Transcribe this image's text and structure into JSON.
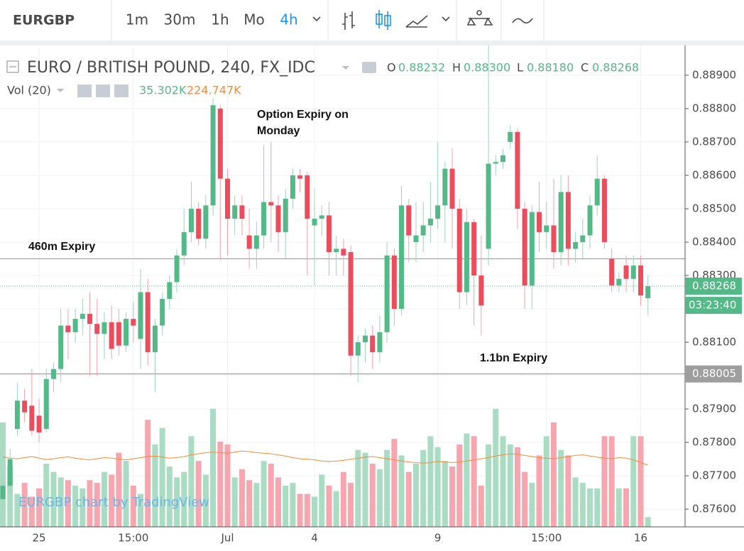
{
  "toolbar": {
    "symbol": "EURGBP",
    "intervals": [
      "1m",
      "30m",
      "1h",
      "Mo",
      "4h"
    ]
  },
  "chart_data": {
    "type": "candlestick",
    "title": "EURO / BRITISH POUND, 240, FX_IDC",
    "ohlc_legend": [
      {
        "label": "O",
        "value": "0.88232"
      },
      {
        "label": "H",
        "value": "0.88300"
      },
      {
        "label": "L",
        "value": "0.88180"
      },
      {
        "label": "C",
        "value": "0.88268"
      }
    ],
    "volume_legend": {
      "name": "Vol (20)",
      "values": [
        "35.302K",
        "224.747K"
      ]
    },
    "categories": [
      null,
      null,
      null,
      null,
      null,
      "25",
      null,
      null,
      null,
      null,
      null,
      null,
      null,
      null,
      null,
      null,
      null,
      null,
      "15:00",
      null,
      null,
      null,
      null,
      null,
      null,
      null,
      null,
      null,
      null,
      null,
      null,
      "Jul",
      null,
      null,
      null,
      null,
      null,
      null,
      null,
      null,
      null,
      null,
      null,
      "4",
      null,
      null,
      null,
      null,
      null,
      null,
      null,
      null,
      null,
      null,
      null,
      null,
      null,
      null,
      null,
      null,
      "9",
      null,
      null,
      null,
      null,
      null,
      null,
      null,
      null,
      null,
      null,
      null,
      null,
      null,
      null,
      "15:00",
      null,
      null,
      null,
      null,
      null,
      null,
      null,
      null,
      null,
      null,
      null,
      null,
      "16",
      null
    ],
    "open": [
      0.8763,
      0.8767,
      0.8784,
      0.87925,
      0.8791,
      0.8788,
      0.8784,
      0.8799,
      0.8802,
      0.8815,
      0.8813,
      0.8817,
      0.88185,
      0.88155,
      0.88125,
      0.8816,
      0.8816,
      0.8809,
      0.8817,
      0.8811,
      0.8825,
      0.8807,
      0.8815,
      0.8823,
      0.8828,
      0.8836,
      0.8843,
      0.885,
      0.8841,
      0.8851,
      0.888,
      0.8859,
      0.8847,
      0.8851,
      0.8842,
      0.8838,
      0.8842,
      0.8852,
      0.8851,
      0.8843,
      0.8853,
      0.886,
      0.886,
      0.8845,
      0.8847,
      0.8848,
      0.8837,
      0.8838,
      0.8837,
      0.8806,
      0.881,
      0.8812,
      0.8807,
      0.8813,
      0.8836,
      0.882,
      0.8851,
      0.884,
      0.8842,
      0.8845,
      0.8847,
      0.8851,
      0.8862,
      0.885,
      0.8825,
      0.8846,
      0.883,
      0.8838,
      0.88635,
      0.8864,
      0.887,
      0.8873,
      0.885,
      0.8827,
      0.8849,
      0.8843,
      0.8845,
      0.8837,
      0.8855,
      0.8838,
      0.884,
      0.8842,
      0.8851,
      0.8859,
      0.8835,
      0.8827,
      0.8833,
      0.8829,
      0.8833,
      0.88232
    ],
    "high": [
      0.877,
      0.8778,
      0.8798,
      0.8796,
      0.8802,
      0.8793,
      0.8802,
      0.8804,
      0.882,
      0.882,
      0.882,
      0.8823,
      0.8825,
      0.8823,
      0.8819,
      0.8821,
      0.882,
      0.8819,
      0.8822,
      0.8832,
      0.8829,
      0.8817,
      0.8825,
      0.883,
      0.8838,
      0.885,
      0.8858,
      0.8852,
      0.8854,
      0.8883,
      0.8881,
      0.8862,
      0.8854,
      0.8854,
      0.885,
      0.8846,
      0.8869,
      0.887,
      0.8854,
      0.8856,
      0.8862,
      0.8862,
      0.8861,
      0.8856,
      0.8851,
      0.8852,
      0.8842,
      0.8841,
      0.8839,
      0.8812,
      0.8814,
      0.8815,
      0.8818,
      0.884,
      0.8838,
      0.8857,
      0.8853,
      0.8852,
      0.8852,
      0.8858,
      0.887,
      0.8864,
      0.8868,
      0.8853,
      0.885,
      0.8847,
      0.8842,
      0.8899,
      0.8866,
      0.8868,
      0.8875,
      0.8874,
      0.8852,
      0.8851,
      0.8858,
      0.8852,
      0.8859,
      0.886,
      0.886,
      0.8843,
      0.8847,
      0.8854,
      0.8866,
      0.886,
      0.8838,
      0.8831,
      0.8836,
      0.8836,
      0.8836,
      0.883
    ],
    "low": [
      0.876,
      0.8765,
      0.8782,
      0.8786,
      0.8782,
      0.878,
      0.8783,
      0.8795,
      0.8798,
      0.8805,
      0.881,
      0.8812,
      0.88,
      0.88,
      0.8805,
      0.8805,
      0.8806,
      0.8807,
      0.881,
      0.8802,
      0.8803,
      0.8795,
      0.8812,
      0.882,
      0.8825,
      0.8833,
      0.884,
      0.8839,
      0.8838,
      0.8848,
      0.8835,
      0.8836,
      0.8842,
      0.8842,
      0.8832,
      0.8832,
      0.8838,
      0.884,
      0.8837,
      0.8835,
      0.885,
      0.8855,
      0.883,
      0.8827,
      0.8842,
      0.883,
      0.883,
      0.883,
      0.88,
      0.8798,
      0.8804,
      0.8802,
      0.8804,
      0.881,
      0.8815,
      0.8818,
      0.8834,
      0.8834,
      0.8837,
      0.884,
      0.8844,
      0.884,
      0.8838,
      0.882,
      0.8821,
      0.8815,
      0.8812,
      0.8833,
      0.886,
      0.8862,
      0.8868,
      0.8844,
      0.882,
      0.882,
      0.8837,
      0.8838,
      0.8832,
      0.8833,
      0.8833,
      0.8834,
      0.8835,
      0.8838,
      0.8848,
      0.8838,
      0.8825,
      0.8825,
      0.8825,
      0.8825,
      0.8821,
      0.8818
    ],
    "close": [
      0.8767,
      0.8775,
      0.87925,
      0.8789,
      0.87835,
      0.8783,
      0.8799,
      0.8802,
      0.8815,
      0.8813,
      0.8817,
      0.88185,
      0.88155,
      0.88125,
      0.8816,
      0.8808,
      0.8809,
      0.8817,
      0.8815,
      0.8825,
      0.8807,
      0.8815,
      0.8823,
      0.8828,
      0.8836,
      0.8843,
      0.885,
      0.8841,
      0.8851,
      0.8881,
      0.8859,
      0.8847,
      0.8851,
      0.8847,
      0.8838,
      0.8842,
      0.8852,
      0.8851,
      0.8843,
      0.8853,
      0.886,
      0.8859,
      0.8847,
      0.8847,
      0.8848,
      0.8837,
      0.8838,
      0.8836,
      0.8806,
      0.881,
      0.8812,
      0.8807,
      0.8813,
      0.8836,
      0.882,
      0.8851,
      0.8842,
      0.8842,
      0.8845,
      0.8847,
      0.8851,
      0.8862,
      0.885,
      0.8825,
      0.8846,
      0.883,
      0.8821,
      0.88635,
      0.8864,
      0.8866,
      0.8873,
      0.885,
      0.8827,
      0.8849,
      0.8843,
      0.8845,
      0.8837,
      0.8855,
      0.8838,
      0.884,
      0.8842,
      0.8851,
      0.8859,
      0.884,
      0.8827,
      0.8829,
      0.8829,
      0.8833,
      0.8824,
      0.88268
    ],
    "volumes": [
      380,
      220,
      120,
      160,
      110,
      140,
      230,
      200,
      180,
      170,
      150,
      140,
      170,
      160,
      200,
      190,
      270,
      240,
      150,
      120,
      390,
      300,
      360,
      220,
      180,
      200,
      330,
      240,
      190,
      430,
      310,
      300,
      180,
      210,
      170,
      160,
      240,
      230,
      180,
      150,
      160,
      120,
      120,
      110,
      190,
      150,
      130,
      200,
      160,
      280,
      270,
      230,
      210,
      280,
      320,
      260,
      200,
      230,
      280,
      330,
      290,
      240,
      220,
      300,
      340,
      330,
      150,
      300,
      430,
      330,
      300,
      290,
      200,
      160,
      260,
      330,
      380,
      280,
      260,
      180,
      160,
      140,
      140,
      330,
      330,
      140,
      140,
      330,
      330,
      35.302
    ],
    "volume_ma": [
      255,
      250,
      248,
      252,
      256,
      250,
      245,
      248,
      252,
      255,
      250,
      246,
      244,
      248,
      252,
      250,
      246,
      244,
      248,
      252,
      256,
      258,
      254,
      250,
      252,
      256,
      262,
      266,
      270,
      272,
      270,
      268,
      272,
      276,
      274,
      270,
      268,
      266,
      262,
      258,
      252,
      248,
      246,
      244,
      240,
      238,
      240,
      242,
      246,
      250,
      254,
      256,
      252,
      248,
      244,
      240,
      236,
      234,
      232,
      234,
      238,
      236,
      234,
      236,
      240,
      244,
      248,
      252,
      258,
      262,
      266,
      264,
      260,
      256,
      252,
      250,
      248,
      252,
      256,
      260,
      262,
      258,
      254,
      250,
      248,
      252,
      250,
      244,
      234,
      224.747
    ],
    "ylim": [
      0.87547,
      0.88987
    ],
    "yticks": [
      {
        "value": 0.876,
        "label": "0.87600"
      },
      {
        "value": 0.877,
        "label": "0.87700"
      },
      {
        "value": 0.878,
        "label": "0.87800"
      },
      {
        "value": 0.879,
        "label": "0.87900"
      },
      {
        "value": 0.88,
        "label": "0.88000"
      },
      {
        "value": 0.881,
        "label": "0.88100"
      },
      {
        "value": 0.882,
        "label": "0.88200"
      },
      {
        "value": 0.883,
        "label": "0.88300"
      },
      {
        "value": 0.884,
        "label": "0.88400"
      },
      {
        "value": 0.885,
        "label": "0.88500"
      },
      {
        "value": 0.886,
        "label": "0.88600"
      },
      {
        "value": 0.887,
        "label": "0.88700"
      },
      {
        "value": 0.888,
        "label": "0.88800"
      },
      {
        "value": 0.889,
        "label": "0.88900"
      }
    ],
    "volume_lim": [
      0,
      1750
    ],
    "grid": true,
    "up_color": "#53b987",
    "down_color": "#eb4d5c",
    "volume_up_color": "#a9dcc3",
    "volume_down_color": "#f5a6ae",
    "ma_color": "#f68c34",
    "level_line": 0.8835,
    "marked_line": 0.88005,
    "last_price": 0.88268,
    "countdown": "03:23:40",
    "annotations": [
      "Option Expiry on",
      "Monday",
      "460m Expiry",
      "1.1bn Expiry"
    ],
    "watermark": "EURGBP chart by TradingView"
  }
}
